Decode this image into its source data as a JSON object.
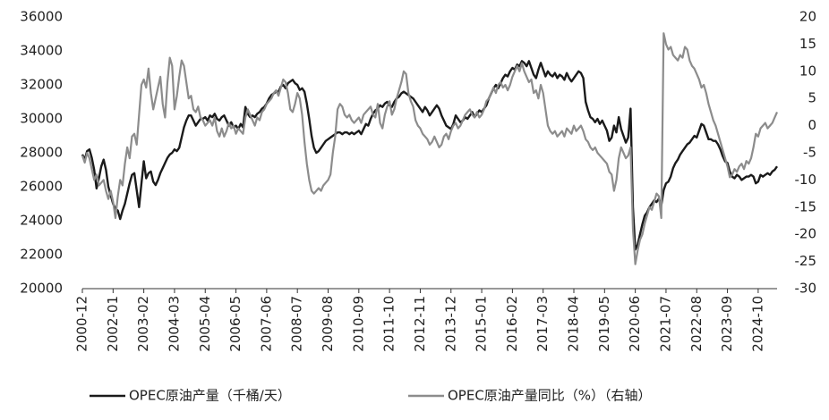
{
  "chart_data": {
    "type": "line",
    "categories": [
      "2000-12",
      null,
      null,
      null,
      null,
      null,
      null,
      null,
      null,
      null,
      null,
      null,
      null,
      "2002-01",
      null,
      null,
      null,
      null,
      null,
      null,
      null,
      null,
      null,
      null,
      null,
      null,
      "2003-02",
      null,
      null,
      null,
      null,
      null,
      null,
      null,
      null,
      null,
      null,
      null,
      null,
      "2004-03",
      null,
      null,
      null,
      null,
      null,
      null,
      null,
      null,
      null,
      null,
      null,
      null,
      "2005-04",
      null,
      null,
      null,
      null,
      null,
      null,
      null,
      null,
      null,
      null,
      null,
      null,
      "2006-05",
      null,
      null,
      null,
      null,
      null,
      null,
      null,
      null,
      null,
      null,
      null,
      null,
      "2007-06",
      null,
      null,
      null,
      null,
      null,
      null,
      null,
      null,
      null,
      null,
      null,
      null,
      "2008-07",
      null,
      null,
      null,
      null,
      null,
      null,
      null,
      null,
      null,
      null,
      null,
      null,
      "2009-08",
      null,
      null,
      null,
      null,
      null,
      null,
      null,
      null,
      null,
      null,
      null,
      null,
      "2010-09",
      null,
      null,
      null,
      null,
      null,
      null,
      null,
      null,
      null,
      null,
      null,
      null,
      "2011-10",
      null,
      null,
      null,
      null,
      null,
      null,
      null,
      null,
      null,
      null,
      null,
      null,
      "2012-11",
      null,
      null,
      null,
      null,
      null,
      null,
      null,
      null,
      null,
      null,
      null,
      null,
      "2013-12",
      null,
      null,
      null,
      null,
      null,
      null,
      null,
      null,
      null,
      null,
      null,
      null,
      "2015-01",
      null,
      null,
      null,
      null,
      null,
      null,
      null,
      null,
      null,
      null,
      null,
      null,
      "2016-02",
      null,
      null,
      null,
      null,
      null,
      null,
      null,
      null,
      null,
      null,
      null,
      null,
      "2017-03",
      null,
      null,
      null,
      null,
      null,
      null,
      null,
      null,
      null,
      null,
      null,
      null,
      "2018-04",
      null,
      null,
      null,
      null,
      null,
      null,
      null,
      null,
      null,
      null,
      null,
      null,
      "2019-05",
      null,
      null,
      null,
      null,
      null,
      null,
      null,
      null,
      null,
      null,
      null,
      null,
      "2020-06",
      null,
      null,
      null,
      null,
      null,
      null,
      null,
      null,
      null,
      null,
      null,
      null,
      "2021-07",
      null,
      null,
      null,
      null,
      null,
      null,
      null,
      null,
      null,
      null,
      null,
      null,
      "2022-08",
      null,
      null,
      null,
      null,
      null,
      null,
      null,
      null,
      null,
      null,
      null,
      null,
      "2023-09",
      null,
      null,
      null,
      null,
      null,
      null,
      null,
      null,
      null,
      null,
      null,
      null,
      "2024-10",
      null,
      null,
      null,
      null,
      null,
      null,
      null,
      null
    ],
    "series": [
      {
        "name": "OPEC原油产量（千桶/天）",
        "color": "#1a1a1a",
        "values": [
          27900,
          27600,
          28100,
          28200,
          27700,
          27000,
          25900,
          26500,
          27200,
          27600,
          27000,
          26000,
          25500,
          25000,
          24700,
          24600,
          24100,
          24600,
          25000,
          25600,
          26200,
          26700,
          26800,
          25800,
          24800,
          26200,
          27500,
          26500,
          26800,
          26900,
          26300,
          26100,
          26400,
          26800,
          27100,
          27400,
          27700,
          27900,
          28000,
          28200,
          28100,
          28300,
          28900,
          29500,
          29900,
          30200,
          30200,
          29900,
          29600,
          29800,
          30000,
          30000,
          30100,
          29900,
          30200,
          30100,
          30300,
          30000,
          29900,
          30100,
          30200,
          29900,
          29600,
          29800,
          29500,
          29600,
          29400,
          29700,
          29500,
          30700,
          30300,
          30100,
          30200,
          30100,
          30300,
          30400,
          30600,
          30700,
          30900,
          31200,
          31400,
          31500,
          31600,
          31600,
          31900,
          32000,
          31800,
          32100,
          32200,
          32300,
          32100,
          32000,
          31700,
          31800,
          31600,
          30900,
          30000,
          29000,
          28300,
          28000,
          28100,
          28300,
          28500,
          28700,
          28800,
          28900,
          29000,
          29100,
          29200,
          29200,
          29100,
          29200,
          29200,
          29100,
          29200,
          29100,
          29200,
          29300,
          29100,
          29400,
          29700,
          29600,
          30000,
          30300,
          30500,
          30600,
          30800,
          30700,
          30900,
          31000,
          30800,
          30700,
          31000,
          31200,
          31300,
          31500,
          31600,
          31500,
          31400,
          31300,
          31200,
          31000,
          30800,
          30600,
          30400,
          30700,
          30500,
          30200,
          30400,
          30600,
          30800,
          30600,
          30200,
          29900,
          29600,
          29500,
          29400,
          29700,
          30200,
          30000,
          29800,
          29900,
          30100,
          30000,
          30200,
          30400,
          30100,
          30300,
          30500,
          30400,
          30600,
          30800,
          31200,
          31500,
          31800,
          32000,
          31800,
          32100,
          32400,
          32600,
          32500,
          32800,
          33000,
          32900,
          33200,
          33100,
          33400,
          33300,
          33100,
          33400,
          33000,
          32600,
          32400,
          32900,
          33300,
          32900,
          32500,
          32800,
          32600,
          32500,
          32700,
          32400,
          32600,
          32500,
          32300,
          32700,
          32400,
          32200,
          32400,
          32600,
          32800,
          32700,
          32400,
          31000,
          30500,
          30100,
          30000,
          29800,
          30000,
          29700,
          29900,
          29600,
          29300,
          28700,
          28900,
          29600,
          29200,
          30100,
          29400,
          29000,
          28600,
          28900,
          30600,
          24800,
          22300,
          22600,
          23200,
          23800,
          24300,
          24500,
          24800,
          25000,
          25200,
          25100,
          25300,
          24900,
          25800,
          26200,
          26300,
          26600,
          27100,
          27400,
          27600,
          27900,
          28100,
          28300,
          28500,
          28600,
          28800,
          29000,
          28900,
          29300,
          29700,
          29600,
          29200,
          28800,
          28800,
          28700,
          28700,
          28500,
          28200,
          27800,
          27500,
          27400,
          26900,
          26600,
          26500,
          26700,
          26600,
          26400,
          26500,
          26600,
          26600,
          26700,
          26600,
          26200,
          26300,
          26700,
          26600,
          26700,
          26800,
          26700,
          26900,
          27000,
          27200
        ]
      },
      {
        "name": "OPEC原油产量同比（%）（右轴）",
        "color": "#8c8c8c",
        "axis": "y2",
        "values": [
          -5.5,
          -6.8,
          -5,
          -6,
          -8,
          -10,
          -9,
          -11,
          -10.5,
          -10,
          -12,
          -13.5,
          -12,
          -14,
          -17,
          -13,
          -10,
          -11,
          -7,
          -4,
          -6,
          -2,
          -1.5,
          -3.5,
          2,
          7.5,
          8.5,
          7,
          10.5,
          6,
          3,
          5,
          7,
          9,
          4,
          1.5,
          8,
          12.5,
          11,
          3,
          5.5,
          9,
          12,
          11,
          8,
          5,
          5.5,
          3,
          2.5,
          3.5,
          1.5,
          1,
          0,
          0.5,
          1,
          0,
          1.5,
          -1,
          -2,
          -0.5,
          -2,
          -1,
          0.5,
          -0.5,
          0,
          -1.5,
          -0.5,
          -1,
          -1.5,
          1.5,
          3,
          2,
          1,
          0,
          1.5,
          1,
          2.5,
          3,
          4,
          4.5,
          5,
          6,
          6.5,
          5.5,
          7,
          8.5,
          8,
          6,
          3,
          2.5,
          4,
          6,
          5,
          2,
          -3,
          -7,
          -10,
          -12,
          -12.5,
          -12,
          -11.5,
          -12,
          -11,
          -10.5,
          -10,
          -9,
          -5,
          -2,
          3,
          4,
          3.5,
          2,
          1.5,
          2,
          1,
          0.5,
          1,
          1.5,
          0.5,
          2,
          2.5,
          3,
          3.5,
          2,
          1.5,
          4,
          0.5,
          -0.5,
          2,
          3.5,
          4.5,
          2,
          3,
          5,
          6.5,
          8,
          10,
          9.5,
          6,
          4.5,
          3.5,
          1,
          0,
          -0.5,
          -1.5,
          -2,
          -2.5,
          -3.5,
          -3,
          -2,
          -3,
          -4,
          -3.5,
          -2,
          -1.5,
          -2.5,
          -1,
          0,
          0.5,
          -0.5,
          0,
          1,
          2,
          2.5,
          3,
          2,
          1.5,
          2.5,
          1.5,
          2,
          3,
          4.5,
          5,
          6,
          7,
          6,
          7.5,
          8,
          7,
          7.5,
          6.5,
          7.5,
          9,
          10,
          11,
          10,
          11.5,
          10,
          9,
          8,
          8.5,
          6,
          6.5,
          5,
          7.5,
          6,
          3,
          0,
          -1,
          -1.5,
          -1,
          -2,
          -1.5,
          -1,
          -2,
          -0.5,
          -1,
          -1.5,
          0,
          -1,
          -0.5,
          0,
          -1,
          -2.5,
          -3,
          -4,
          -4.5,
          -4,
          -5,
          -5.5,
          -6,
          -6.5,
          -7,
          -8.5,
          -9,
          -12,
          -10,
          -6,
          -4,
          -5,
          -6,
          -5.5,
          -4,
          -19,
          -25.5,
          -23,
          -21,
          -20,
          -18,
          -16.5,
          -15,
          -15.5,
          -14,
          -12.5,
          -13,
          -17,
          17,
          15,
          14,
          14.5,
          13,
          12.5,
          12,
          13,
          12.5,
          14.5,
          14,
          12,
          11,
          10.5,
          9.5,
          8.5,
          7,
          7.5,
          6,
          4,
          2.5,
          1,
          0,
          -1.5,
          -3,
          -4.5,
          -6,
          -7.5,
          -9.5,
          -9,
          -8,
          -8.5,
          -7.5,
          -7,
          -8,
          -6.5,
          -7,
          -6,
          -4,
          -1.5,
          -2,
          -0.5,
          0,
          0.5,
          -0.5,
          0,
          0.5,
          1.5,
          2.5
        ]
      }
    ],
    "ylim": [
      20000,
      36000
    ],
    "yticks": [
      20000,
      22000,
      24000,
      26000,
      28000,
      30000,
      32000,
      34000,
      36000
    ],
    "y2lim": [
      -30,
      20
    ],
    "y2ticks": [
      -30,
      -25,
      -20,
      -15,
      -10,
      -5,
      0,
      5,
      10,
      15,
      20
    ],
    "grid": false
  }
}
